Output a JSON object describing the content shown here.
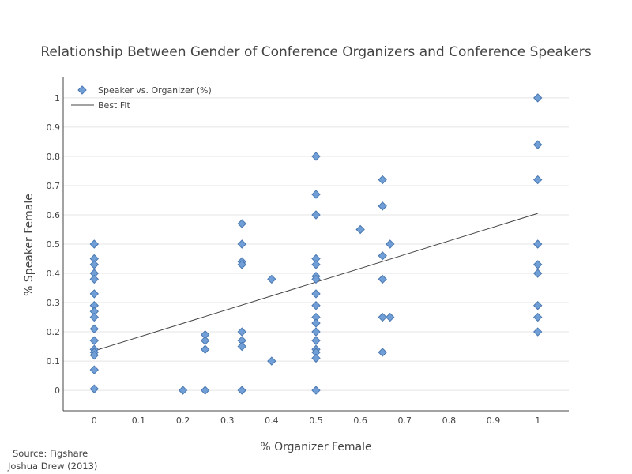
{
  "chart_data": {
    "type": "scatter",
    "title": "Relationship Between Gender of Conference Organizers and Conference Speakers",
    "xlabel": "% Organizer Female",
    "ylabel": "% Speaker Female",
    "xlim": [
      -0.07,
      1.07
    ],
    "ylim": [
      -0.07,
      1.07
    ],
    "xticks": [
      0,
      0.1,
      0.2,
      0.3,
      0.4,
      0.5,
      0.6,
      0.7,
      0.8,
      0.9,
      1
    ],
    "xticklabels": [
      "0",
      "0.1",
      "0.2",
      "0.3",
      "0.4",
      "0.5",
      "0.6",
      "0.7",
      "0.8",
      "0.9",
      "1"
    ],
    "yticks": [
      0,
      0.1,
      0.2,
      0.3,
      0.4,
      0.5,
      0.6,
      0.7,
      0.8,
      0.9,
      1
    ],
    "yticklabels": [
      "0",
      "0.1",
      "0.2",
      "0.3",
      "0.4",
      "0.5",
      "0.6",
      "0.7",
      "0.8",
      "0.9",
      "1"
    ],
    "grid": "horizontal",
    "legend_position": "top-left",
    "series": [
      {
        "name": "Speaker vs. Organizer (%)",
        "kind": "scatter",
        "marker": "diamond",
        "color": "#6f9fd6",
        "edge_color": "#4a77b0",
        "points": [
          [
            0,
            0.5
          ],
          [
            0,
            0.45
          ],
          [
            0,
            0.43
          ],
          [
            0,
            0.4
          ],
          [
            0,
            0.38
          ],
          [
            0,
            0.33
          ],
          [
            0,
            0.29
          ],
          [
            0,
            0.27
          ],
          [
            0,
            0.25
          ],
          [
            0,
            0.21
          ],
          [
            0,
            0.17
          ],
          [
            0,
            0.14
          ],
          [
            0,
            0.13
          ],
          [
            0,
            0.12
          ],
          [
            0,
            0.07
          ],
          [
            0,
            0.005
          ],
          [
            0.2,
            0
          ],
          [
            0.25,
            0.19
          ],
          [
            0.25,
            0.17
          ],
          [
            0.25,
            0.14
          ],
          [
            0.25,
            0
          ],
          [
            0.333,
            0.57
          ],
          [
            0.333,
            0.5
          ],
          [
            0.333,
            0.44
          ],
          [
            0.333,
            0.43
          ],
          [
            0.333,
            0.2
          ],
          [
            0.333,
            0.17
          ],
          [
            0.333,
            0.15
          ],
          [
            0.333,
            0
          ],
          [
            0.4,
            0.38
          ],
          [
            0.4,
            0.1
          ],
          [
            0.5,
            0.8
          ],
          [
            0.5,
            0.67
          ],
          [
            0.5,
            0.6
          ],
          [
            0.5,
            0.45
          ],
          [
            0.5,
            0.43
          ],
          [
            0.5,
            0.39
          ],
          [
            0.5,
            0.38
          ],
          [
            0.5,
            0.33
          ],
          [
            0.5,
            0.29
          ],
          [
            0.5,
            0.25
          ],
          [
            0.5,
            0.23
          ],
          [
            0.5,
            0.2
          ],
          [
            0.5,
            0.17
          ],
          [
            0.5,
            0.14
          ],
          [
            0.5,
            0.13
          ],
          [
            0.5,
            0.11
          ],
          [
            0.5,
            0
          ],
          [
            0.6,
            0.55
          ],
          [
            0.65,
            0.72
          ],
          [
            0.65,
            0.63
          ],
          [
            0.65,
            0.46
          ],
          [
            0.65,
            0.38
          ],
          [
            0.65,
            0.25
          ],
          [
            0.65,
            0.13
          ],
          [
            0.667,
            0.5
          ],
          [
            0.667,
            0.25
          ],
          [
            1,
            1
          ],
          [
            1,
            0.84
          ],
          [
            1,
            0.72
          ],
          [
            1,
            0.5
          ],
          [
            1,
            0.43
          ],
          [
            1,
            0.4
          ],
          [
            1,
            0.29
          ],
          [
            1,
            0.25
          ],
          [
            1,
            0.2
          ]
        ]
      },
      {
        "name": "Best Fit",
        "kind": "line",
        "color": "#444444",
        "x": [
          0,
          1
        ],
        "y": [
          0.135,
          0.605
        ]
      }
    ],
    "source_lines": [
      "Source: Figshare",
      "Joshua Drew (2013)"
    ]
  }
}
